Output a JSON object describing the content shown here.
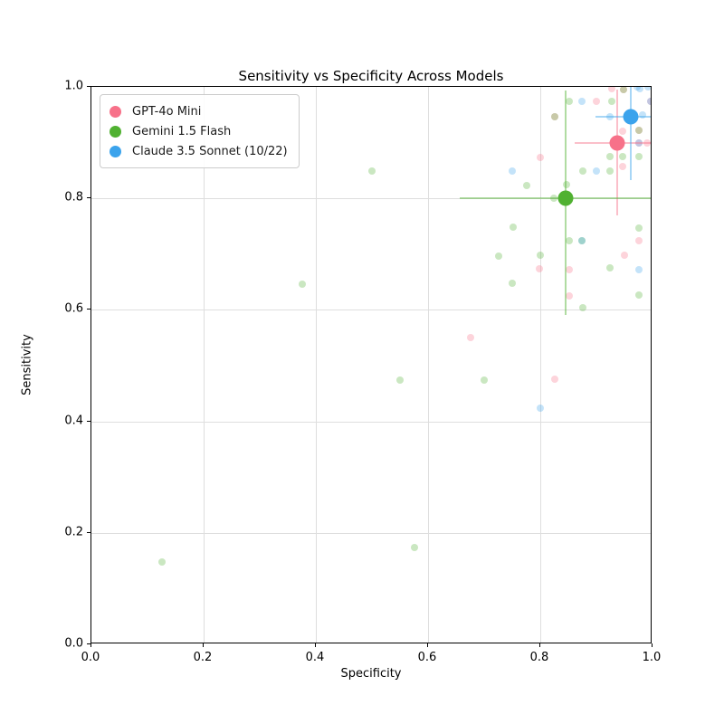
{
  "chart_data": {
    "type": "scatter",
    "title": "Sensitivity vs Specificity Across Models",
    "xlabel": "Specificity",
    "ylabel": "Sensitivity",
    "xlim": [
      0.0,
      1.0
    ],
    "ylim": [
      0.0,
      1.0
    ],
    "x_ticks": [
      "0.0",
      "0.2",
      "0.4",
      "0.6",
      "0.8",
      "1.0"
    ],
    "y_ticks": [
      "0.0",
      "0.2",
      "0.4",
      "0.6",
      "0.8",
      "1.0"
    ],
    "grid": true,
    "grid_color": "#dedede",
    "legend_position": "upper left",
    "marker_alpha_small": 0.3,
    "series": [
      {
        "name": "GPT-4o Mini",
        "color": "#f77189",
        "summary_point": {
          "x": 0.937,
          "y": 0.899,
          "x_err_lo": 0.861,
          "x_err_hi": 0.998,
          "y_err_lo": 0.769,
          "y_err_hi": 0.995
        },
        "scatter_points": [
          [
            0.675,
            0.55
          ],
          [
            0.825,
            0.475
          ],
          [
            0.798,
            0.674
          ],
          [
            0.852,
            0.625
          ],
          [
            0.852,
            0.672
          ],
          [
            0.95,
            0.698
          ],
          [
            0.976,
            0.724
          ],
          [
            0.8,
            0.873
          ],
          [
            0.9,
            0.974
          ],
          [
            0.927,
            0.996
          ],
          [
            0.947,
            0.92
          ],
          [
            0.99,
            0.9
          ],
          [
            0.947,
            0.857
          ],
          [
            0.826,
            0.947
          ],
          [
            0.948,
            0.995
          ],
          [
            0.976,
            0.922
          ],
          [
            0.997,
            0.974
          ],
          [
            0.976,
            0.9
          ]
        ]
      },
      {
        "name": "Gemini 1.5 Flash",
        "color": "#50b131",
        "summary_point": {
          "x": 0.845,
          "y": 0.8,
          "x_err_lo": 0.656,
          "x_err_hi": 1.0,
          "y_err_lo": 0.591,
          "y_err_hi": 0.993
        },
        "scatter_points": [
          [
            0.125,
            0.148
          ],
          [
            0.575,
            0.174
          ],
          [
            0.375,
            0.646
          ],
          [
            0.5,
            0.849
          ],
          [
            0.55,
            0.474
          ],
          [
            0.7,
            0.474
          ],
          [
            0.726,
            0.697
          ],
          [
            0.75,
            0.648
          ],
          [
            0.752,
            0.748
          ],
          [
            0.776,
            0.823
          ],
          [
            0.8,
            0.698
          ],
          [
            0.824,
            0.8
          ],
          [
            0.847,
            0.824
          ],
          [
            0.852,
            0.724
          ],
          [
            0.874,
            0.724
          ],
          [
            0.876,
            0.604
          ],
          [
            0.876,
            0.849
          ],
          [
            0.924,
            0.849
          ],
          [
            0.924,
            0.675
          ],
          [
            0.976,
            0.747
          ],
          [
            0.976,
            0.627
          ],
          [
            0.852,
            0.974
          ],
          [
            0.927,
            0.974
          ],
          [
            0.924,
            0.875
          ],
          [
            0.947,
            0.875
          ],
          [
            0.976,
            0.875
          ],
          [
            0.826,
            0.947
          ],
          [
            0.948,
            0.995
          ],
          [
            0.976,
            0.922
          ]
        ]
      },
      {
        "name": "Claude 3.5 Sonnet (10/22)",
        "color": "#3ba3ec",
        "summary_point": {
          "x": 0.961,
          "y": 0.946,
          "x_err_lo": 0.898,
          "x_err_hi": 1.0,
          "y_err_lo": 0.833,
          "y_err_hi": 1.0
        },
        "scatter_points": [
          [
            0.8,
            0.424
          ],
          [
            0.75,
            0.849
          ],
          [
            0.9,
            0.849
          ],
          [
            0.976,
            0.672
          ],
          [
            0.874,
            0.974
          ],
          [
            0.924,
            0.946
          ],
          [
            0.982,
            0.95
          ],
          [
            0.973,
            1.0
          ],
          [
            0.992,
            1.0
          ],
          [
            0.997,
            0.974
          ],
          [
            0.976,
            0.9
          ],
          [
            0.874,
            0.724
          ],
          [
            0.977,
            0.997
          ]
        ]
      }
    ]
  }
}
